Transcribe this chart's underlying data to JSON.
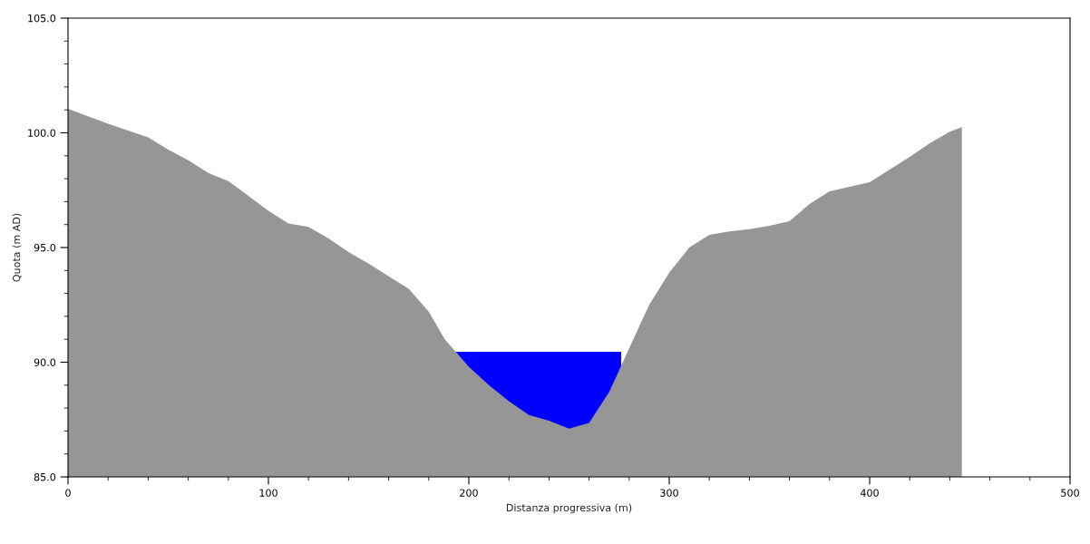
{
  "chart_data": {
    "type": "area",
    "xlabel": "Distanza progressiva (m)",
    "ylabel": "Quota (m AD)",
    "xlim": [
      0,
      500
    ],
    "xticks": [
      0,
      100,
      200,
      300,
      400,
      500
    ],
    "ylim": [
      85,
      105
    ],
    "yticks": [
      {
        "value": 85,
        "label": "85.0"
      },
      {
        "value": 90,
        "label": "90.0"
      },
      {
        "value": 95,
        "label": "95.0"
      },
      {
        "value": 100,
        "label": "100.0"
      },
      {
        "value": 105,
        "label": "105.0"
      }
    ],
    "grid": false,
    "legend": false,
    "series": [
      {
        "color": "#0000ff",
        "x": [
          193,
          276
        ],
        "values": [
          90.45,
          90.45
        ]
      },
      {
        "color": "#969696",
        "x": [
          0,
          20,
          40,
          50,
          60,
          70,
          80,
          90,
          100,
          110,
          120,
          130,
          140,
          150,
          160,
          170,
          180,
          188,
          200,
          210,
          220,
          230,
          240,
          250,
          260,
          270,
          280,
          290,
          300,
          310,
          320,
          330,
          340,
          350,
          360,
          370,
          380,
          390,
          400,
          410,
          420,
          430,
          440,
          446
        ],
        "values": [
          101.05,
          100.4,
          99.8,
          99.27,
          98.8,
          98.25,
          97.9,
          97.25,
          96.6,
          96.05,
          95.9,
          95.4,
          94.8,
          94.3,
          93.75,
          93.2,
          92.2,
          91.0,
          89.8,
          89.0,
          88.3,
          87.7,
          87.45,
          87.1,
          87.35,
          88.7,
          90.6,
          92.5,
          93.9,
          95.0,
          95.55,
          95.7,
          95.8,
          95.95,
          96.15,
          96.9,
          97.45,
          97.65,
          97.85,
          98.4,
          98.95,
          99.55,
          100.05,
          100.25
        ]
      }
    ]
  }
}
